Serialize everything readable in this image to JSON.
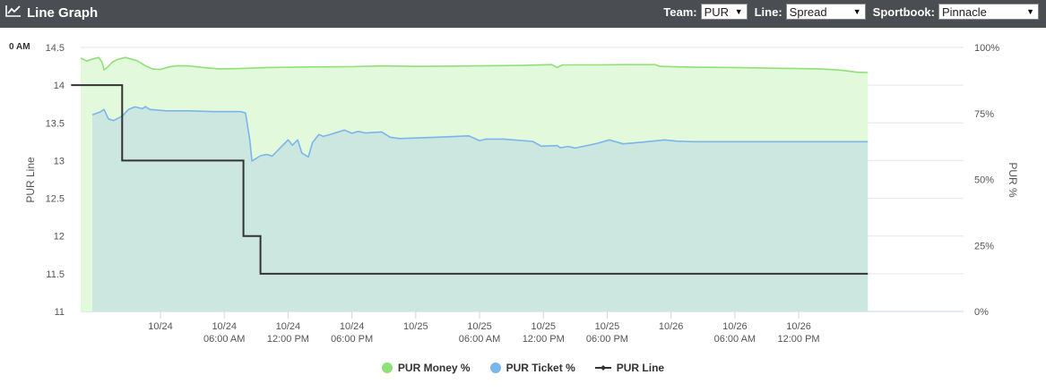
{
  "header": {
    "title": "Line Graph",
    "icon": "line-chart-icon",
    "controls": {
      "team_label": "Team:",
      "team_value": "PUR",
      "line_label": "Line:",
      "line_value": "Spread",
      "sportsbook_label": "Sportbook:",
      "sportsbook_value": "Pinnacle"
    }
  },
  "corner_label": "0 AM",
  "colors": {
    "header_bg": "#4a4d52",
    "money": "#90e07a",
    "money_fill": "#e2f9dc",
    "ticket": "#7cb5ec",
    "ticket_fill": "#cbe7df",
    "line": "#333333"
  },
  "legend": [
    {
      "label": "PUR Money %",
      "color": "#90e07a",
      "type": "dot"
    },
    {
      "label": "PUR Ticket %",
      "color": "#7cb5ec",
      "type": "dot"
    },
    {
      "label": "PUR Line",
      "color": "#333333",
      "type": "line"
    }
  ],
  "chart_data": {
    "type": "line",
    "x_unit": "hours after 10/23 18:00",
    "x_range": [
      -1.5,
      81.5
    ],
    "xticks": [
      {
        "x": 6,
        "label": [
          "10/24"
        ]
      },
      {
        "x": 12,
        "label": [
          "10/24",
          "06:00 AM"
        ]
      },
      {
        "x": 18,
        "label": [
          "10/24",
          "12:00 PM"
        ]
      },
      {
        "x": 24,
        "label": [
          "10/24",
          "06:00 PM"
        ]
      },
      {
        "x": 30,
        "label": [
          "10/25"
        ]
      },
      {
        "x": 36,
        "label": [
          "10/25",
          "06:00 AM"
        ]
      },
      {
        "x": 42,
        "label": [
          "10/25",
          "12:00 PM"
        ]
      },
      {
        "x": 48,
        "label": [
          "10/25",
          "06:00 PM"
        ]
      },
      {
        "x": 54,
        "label": [
          "10/26"
        ]
      },
      {
        "x": 60,
        "label": [
          "10/26",
          "06:00 AM"
        ]
      },
      {
        "x": 66,
        "label": [
          "10/26",
          "12:00 PM"
        ]
      }
    ],
    "y_left": {
      "label": "PUR Line",
      "range": [
        11,
        14.5
      ],
      "ticks": [
        "11",
        "11.5",
        "12",
        "12.5",
        "13",
        "13.5",
        "14",
        "14.5"
      ]
    },
    "y_right": {
      "label": "PUR %",
      "range": [
        0,
        100
      ],
      "ticks": [
        "0%",
        "25%",
        "50%",
        "75%",
        "100%"
      ]
    },
    "series": [
      {
        "name": "PUR Money %",
        "axis": "right",
        "color": "#90e07a",
        "points": [
          [
            -1.5,
            96
          ],
          [
            -0.9,
            94.8
          ],
          [
            -0.5,
            95.5
          ],
          [
            0.2,
            96.2
          ],
          [
            0.5,
            94.5
          ],
          [
            0.7,
            91.5
          ],
          [
            1.1,
            92.8
          ],
          [
            1.5,
            94.5
          ],
          [
            2,
            95.5
          ],
          [
            2.7,
            96.2
          ],
          [
            3.8,
            95
          ],
          [
            4.6,
            93
          ],
          [
            5.3,
            91.8
          ],
          [
            6,
            91.7
          ],
          [
            6.8,
            92.6
          ],
          [
            7.6,
            93.1
          ],
          [
            8.6,
            93
          ],
          [
            10,
            92.4
          ],
          [
            11.5,
            91.9
          ],
          [
            13.5,
            92
          ],
          [
            16,
            92.4
          ],
          [
            20,
            92.6
          ],
          [
            24,
            92.7
          ],
          [
            27,
            93
          ],
          [
            30,
            92.8
          ],
          [
            33,
            92.9
          ],
          [
            36,
            93
          ],
          [
            40,
            93.2
          ],
          [
            42.8,
            93.5
          ],
          [
            43.3,
            92.4
          ],
          [
            43.8,
            93.4
          ],
          [
            47,
            93.4
          ],
          [
            50,
            93.5
          ],
          [
            52.5,
            93.5
          ],
          [
            53,
            92.8
          ],
          [
            56,
            92.5
          ],
          [
            60,
            92.4
          ],
          [
            64,
            92.1
          ],
          [
            68,
            91.9
          ],
          [
            70,
            91.4
          ],
          [
            71.5,
            90.6
          ],
          [
            72.5,
            90.5
          ]
        ]
      },
      {
        "name": "PUR Ticket %",
        "axis": "right",
        "color": "#7cb5ec",
        "points": [
          [
            -0.4,
            74.5
          ],
          [
            0.3,
            75.5
          ],
          [
            0.7,
            76.5
          ],
          [
            1.1,
            73
          ],
          [
            1.6,
            72.3
          ],
          [
            2.4,
            74
          ],
          [
            3,
            76.5
          ],
          [
            3.6,
            77.5
          ],
          [
            4.3,
            76.8
          ],
          [
            4.6,
            77.6
          ],
          [
            5,
            76.5
          ],
          [
            6.5,
            76
          ],
          [
            8.6,
            76
          ],
          [
            11,
            75.7
          ],
          [
            13.5,
            75.7
          ],
          [
            14,
            75.2
          ],
          [
            14.4,
            65
          ],
          [
            14.6,
            57
          ],
          [
            15.4,
            59
          ],
          [
            16,
            59.5
          ],
          [
            16.5,
            58.8
          ],
          [
            17.4,
            62.5
          ],
          [
            18,
            65
          ],
          [
            18.4,
            63
          ],
          [
            18.9,
            65
          ],
          [
            19.3,
            60
          ],
          [
            19.9,
            58.5
          ],
          [
            20.3,
            64
          ],
          [
            20.9,
            67
          ],
          [
            21.3,
            66.3
          ],
          [
            22,
            67.1
          ],
          [
            23.3,
            68.7
          ],
          [
            24,
            67.5
          ],
          [
            24.6,
            68.2
          ],
          [
            25.3,
            67.6
          ],
          [
            26.8,
            68
          ],
          [
            27.6,
            66
          ],
          [
            28.5,
            65.5
          ],
          [
            32,
            66
          ],
          [
            35,
            66.5
          ],
          [
            36,
            64.7
          ],
          [
            36.6,
            65.3
          ],
          [
            38.3,
            65.3
          ],
          [
            41,
            64.4
          ],
          [
            41.8,
            62.6
          ],
          [
            43.3,
            62.8
          ],
          [
            43.6,
            62
          ],
          [
            44.3,
            62.5
          ],
          [
            45,
            61.9
          ],
          [
            47,
            63.6
          ],
          [
            48.2,
            65
          ],
          [
            49.5,
            63.5
          ],
          [
            51,
            64
          ],
          [
            53.4,
            65
          ],
          [
            54.5,
            64.5
          ],
          [
            56,
            64.3
          ],
          [
            60,
            64.3
          ],
          [
            65,
            64.3
          ],
          [
            70,
            64.3
          ],
          [
            72.5,
            64.3
          ]
        ]
      },
      {
        "name": "PUR Line",
        "axis": "left",
        "color": "#333333",
        "points": [
          [
            -2.4,
            14
          ],
          [
            2.4,
            14
          ],
          [
            2.4,
            13
          ],
          [
            13.8,
            13
          ],
          [
            13.8,
            12
          ],
          [
            15.4,
            12
          ],
          [
            15.4,
            11.5
          ],
          [
            72.5,
            11.5
          ]
        ]
      }
    ]
  }
}
